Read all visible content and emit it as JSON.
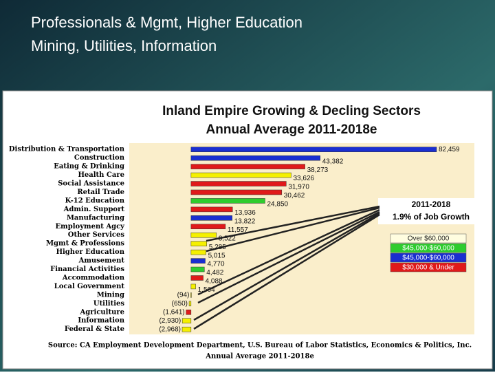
{
  "header": {
    "lines": [
      "Professionals & Mgmt, Higher Education",
      "Mining, Utilities, Information"
    ]
  },
  "chart_data": {
    "type": "bar",
    "orientation": "horizontal",
    "title": "Inland Empire Growing & Decling Sectors",
    "subtitle": "Annual Average 2011-2018e",
    "categories": [
      "Distribution & Transportation",
      "Construction",
      "Eating & Drinking",
      "Health Care",
      "Social Assistance",
      "Retail Trade",
      "K-12 Education",
      "Admin. Support",
      "Manufacturing",
      "Employment Agcy",
      "Other Services",
      "Mgmt & Professions",
      "Higher Education",
      "Amusement",
      "Financial Activities",
      "Accommodation",
      "Local Government",
      "Mining",
      "Utilities",
      "Agriculture",
      "Information",
      "Federal & State"
    ],
    "values": [
      82459,
      43382,
      38273,
      33626,
      31970,
      30462,
      24850,
      13936,
      13822,
      11557,
      8522,
      5285,
      5015,
      4770,
      4482,
      4088,
      1564,
      -94,
      -650,
      -1641,
      -2930,
      -2968
    ],
    "value_labels": [
      "82,459",
      "43,382",
      "38,273",
      "33,626",
      "31,970",
      "30,462",
      "24,850",
      "13,936",
      "13,822",
      "11,557",
      "8,522",
      "5,285",
      "5,015",
      "4,770",
      "4,482",
      "4,088",
      "1,564",
      "(94)",
      "(650)",
      "(1,641)",
      "(2,930)",
      "(2,968)"
    ],
    "colors": [
      "#1a2fd0",
      "#1a2fd0",
      "#e01a1a",
      "#f5f000",
      "#e01a1a",
      "#e01a1a",
      "#2ecc2e",
      "#e01a1a",
      "#1a2fd0",
      "#e01a1a",
      "#f5f000",
      "#f5f000",
      "#f5f000",
      "#1a2fd0",
      "#2ecc2e",
      "#e01a1a",
      "#f5f000",
      "#f5f000",
      "#f5f000",
      "#e01a1a",
      "#f5f000",
      "#f5f000"
    ],
    "annotation": [
      "2011-2018",
      "1.9%  of Job Growth"
    ],
    "legend": [
      {
        "name": "Over $60,000",
        "color": "#fffde0"
      },
      {
        "name": "$45,000-$60,000",
        "color": "#2ecc2e"
      },
      {
        "name": "$45,000-$60,000",
        "color": "#1a2fd0"
      },
      {
        "name": "$30,000 & Under",
        "color": "#e01a1a"
      }
    ],
    "source": [
      "Source:  CA Employment Development Department, U.S. Bureau of Labor Statistics, Economics & Politics, Inc.",
      "Annual Average 2011-2018e"
    ]
  }
}
